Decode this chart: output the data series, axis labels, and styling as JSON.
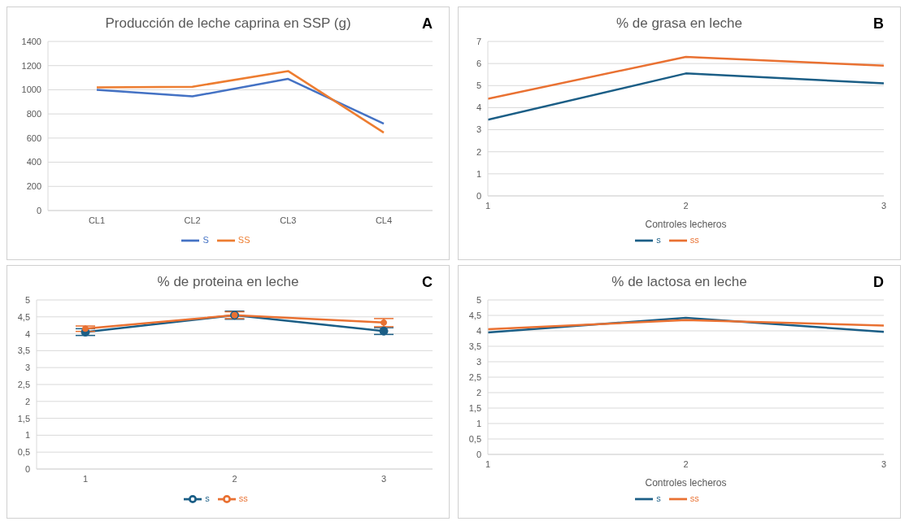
{
  "chart_data": [
    {
      "type": "line",
      "title": "Producción de leche caprina en SSP (g)",
      "annotations": [
        "A"
      ],
      "categories": [
        "CL1",
        "CL2",
        "CL3",
        "CL4"
      ],
      "series": [
        {
          "name": "S",
          "color": "#4472c4",
          "values": [
            1000,
            945,
            1090,
            720
          ]
        },
        {
          "name": "SS",
          "color": "#ed7d31",
          "values": [
            1020,
            1025,
            1155,
            645
          ]
        }
      ],
      "ylim": [
        0,
        1400
      ],
      "yticks": [
        0,
        200,
        400,
        600,
        800,
        1000,
        1200,
        1400
      ],
      "grid": "y",
      "legend": "bottom"
    },
    {
      "type": "line",
      "title": "% de grasa en leche",
      "annotations": [
        "B"
      ],
      "xlabel": "Controles lecheros",
      "x": [
        1,
        2,
        3
      ],
      "xlim": [
        1,
        3
      ],
      "xticks": [
        1,
        2,
        3
      ],
      "series": [
        {
          "name": "s",
          "color": "#1b5e86",
          "values": [
            3.45,
            5.55,
            5.1
          ]
        },
        {
          "name": "ss",
          "color": "#e97132",
          "values": [
            4.4,
            6.3,
            5.9
          ]
        }
      ],
      "ylim": [
        0,
        7
      ],
      "yticks": [
        0,
        1,
        2,
        3,
        4,
        5,
        6,
        7
      ],
      "grid": "y",
      "legend": "bottom"
    },
    {
      "type": "line",
      "title": "% de proteina en leche",
      "annotations": [
        "C"
      ],
      "categories": [
        "1",
        "2",
        "3"
      ],
      "marker": "circle",
      "series": [
        {
          "name": "s",
          "color": "#1b5e86",
          "values": [
            4.05,
            4.55,
            4.08
          ],
          "errors": [
            0.1,
            0.12,
            0.1
          ]
        },
        {
          "name": "ss",
          "color": "#e97132",
          "values": [
            4.15,
            4.55,
            4.33
          ],
          "errors": [
            0.08,
            0.1,
            0.12
          ]
        }
      ],
      "ylim": [
        0,
        5
      ],
      "yticks": [
        0,
        {
          "value": 0.5,
          "label": "0,5"
        },
        1,
        {
          "value": 1.5,
          "label": "1,5"
        },
        2,
        {
          "value": 2.5,
          "label": "2,5"
        },
        3,
        {
          "value": 3.5,
          "label": "3,5"
        },
        4,
        {
          "value": 4.5,
          "label": "4,5"
        },
        5
      ],
      "grid": "y",
      "legend": "bottom"
    },
    {
      "type": "line",
      "title": "% de lactosa en leche",
      "annotations": [
        "D"
      ],
      "xlabel": "Controles lecheros",
      "x": [
        1,
        2,
        3
      ],
      "xlim": [
        1,
        3
      ],
      "xticks": [
        1,
        2,
        3
      ],
      "series": [
        {
          "name": "s",
          "color": "#1b5e86",
          "values": [
            3.95,
            4.42,
            3.97
          ]
        },
        {
          "name": "ss",
          "color": "#e97132",
          "values": [
            4.05,
            4.35,
            4.17
          ]
        }
      ],
      "ylim": [
        0,
        5
      ],
      "yticks": [
        0,
        {
          "value": 0.5,
          "label": "0,5"
        },
        1,
        {
          "value": 1.5,
          "label": "1,5"
        },
        2,
        {
          "value": 2.5,
          "label": "2,5"
        },
        3,
        {
          "value": 3.5,
          "label": "3,5"
        },
        4,
        {
          "value": 4.5,
          "label": "4,5"
        },
        5
      ],
      "grid": "y",
      "legend": "bottom"
    }
  ]
}
